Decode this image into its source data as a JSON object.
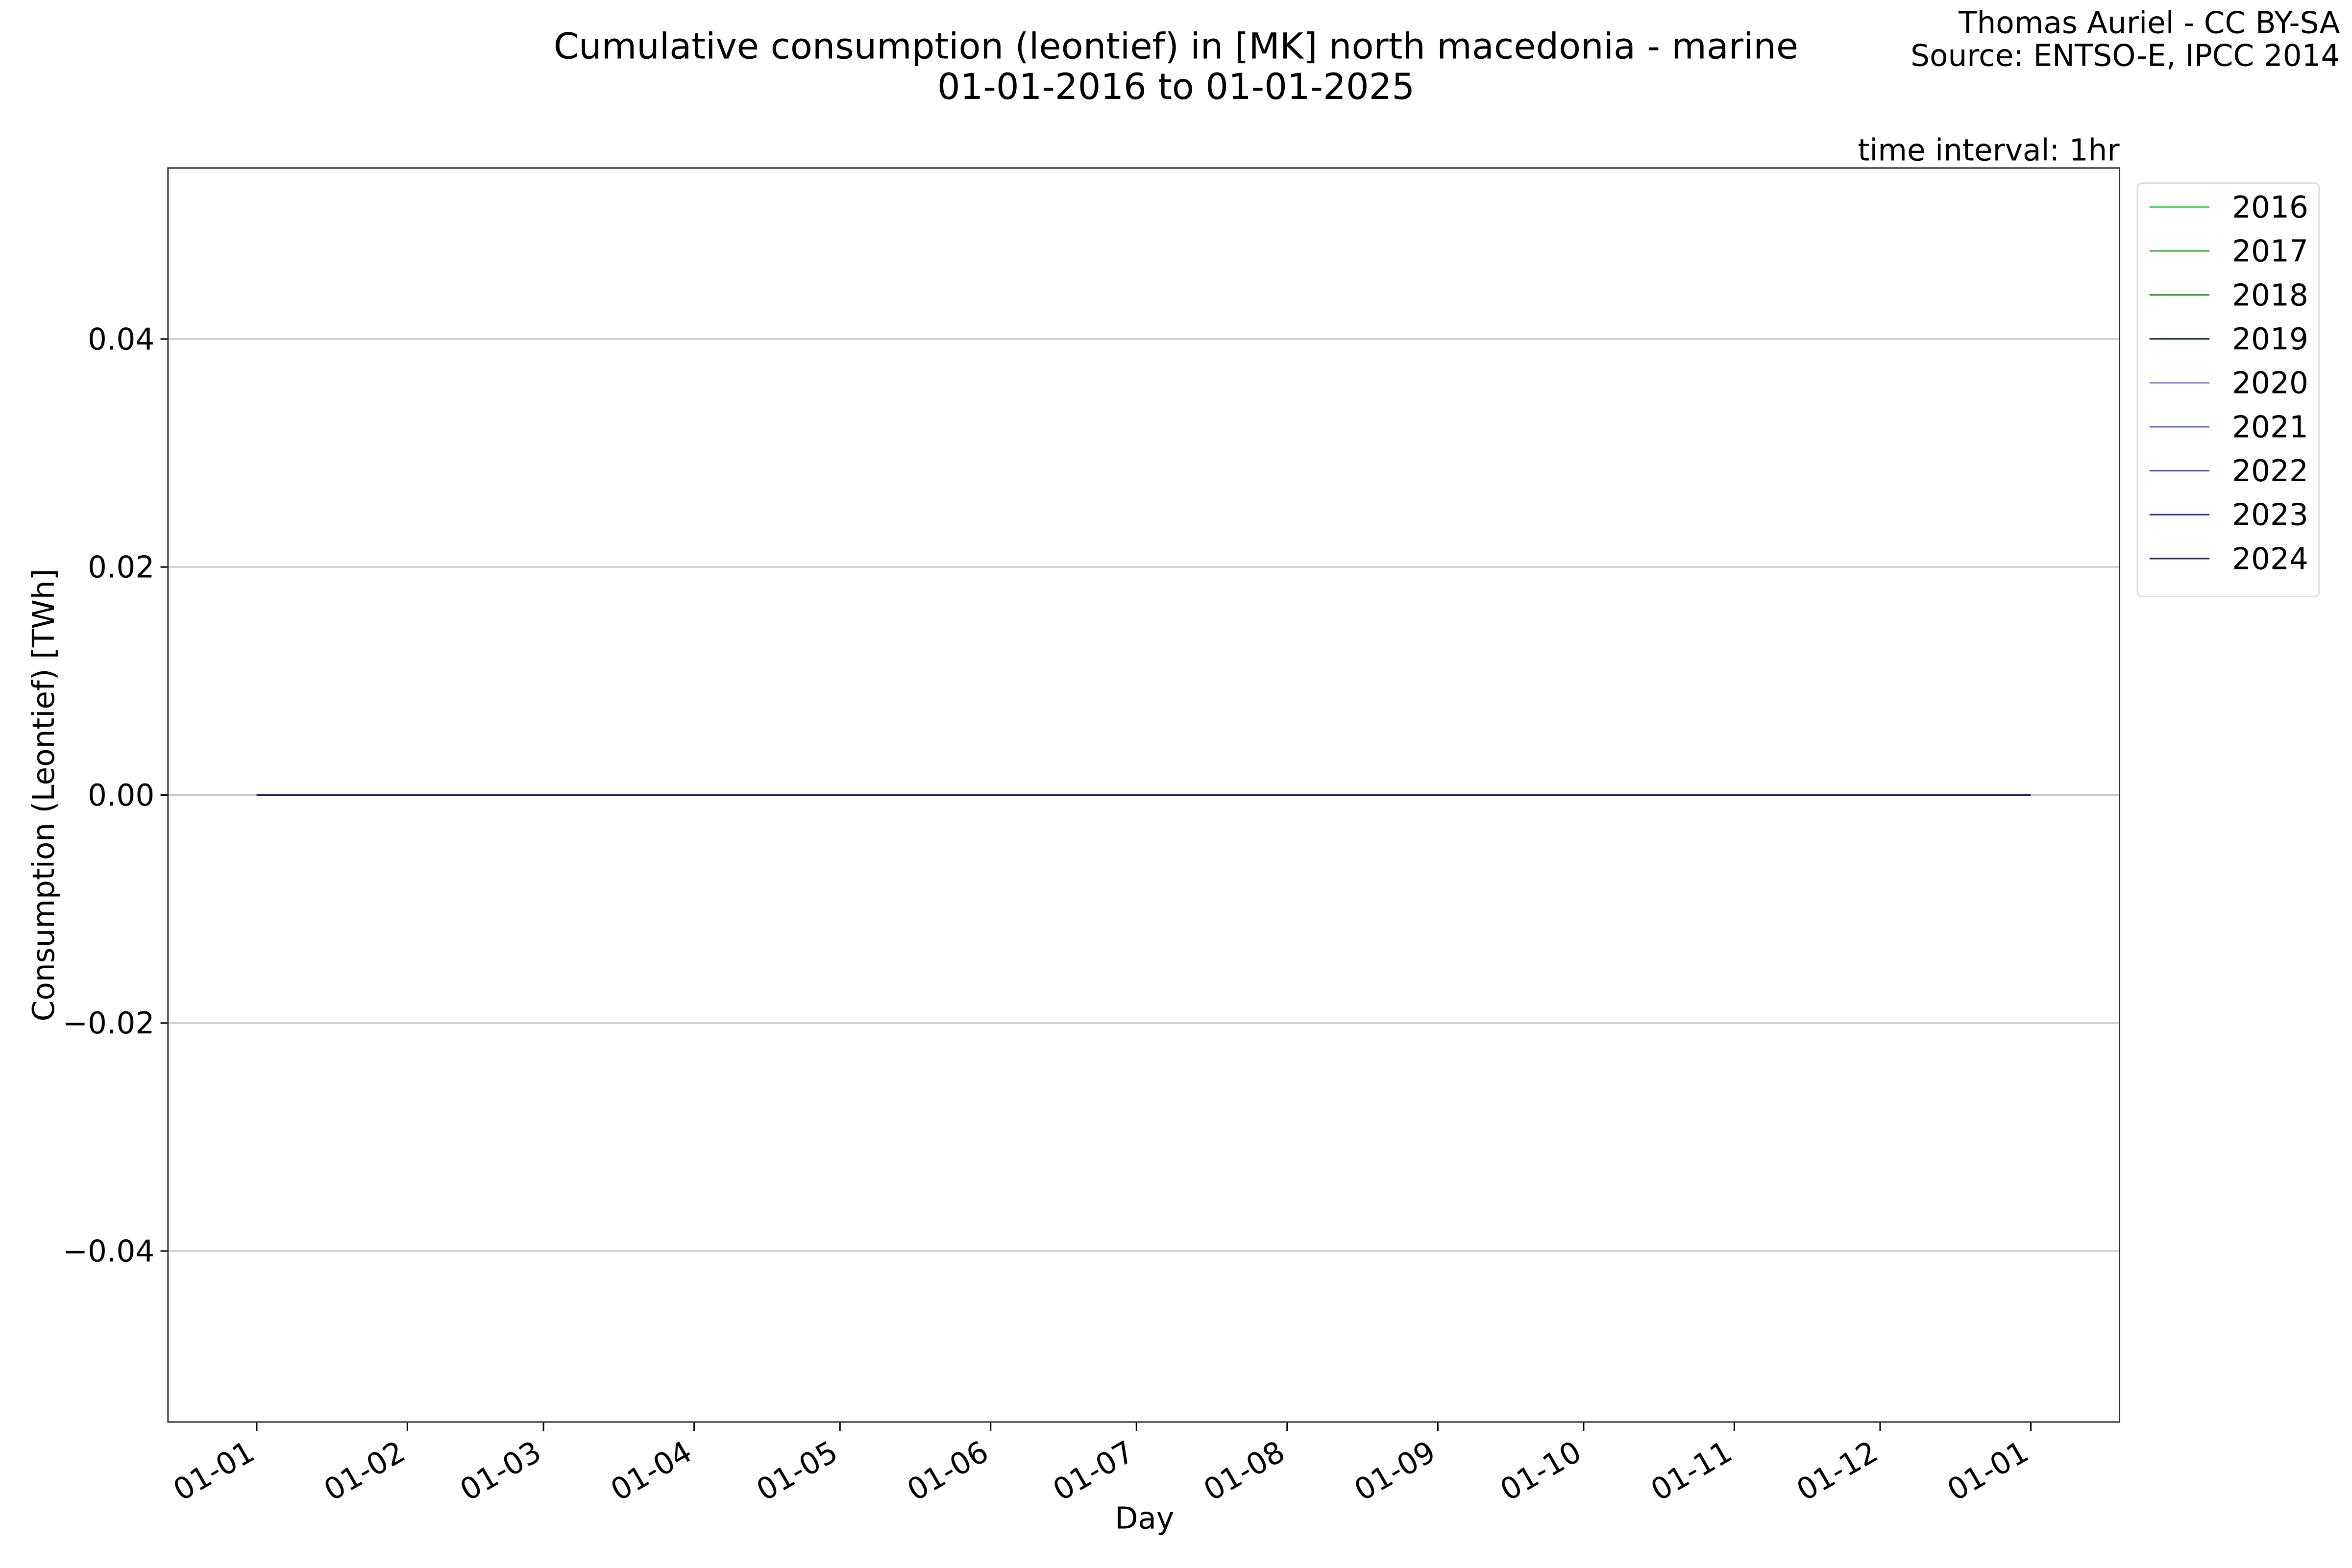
{
  "chart_data": {
    "type": "line",
    "title": "Cumulative consumption (leontief) in [MK] north macedonia - marine",
    "subtitle": "01-01-2016 to 01-01-2025",
    "credit": "Thomas Auriel - CC BY-SA",
    "source": "Source: ENTSO-E, IPCC 2014",
    "annotation": "time interval: 1hr",
    "x_label": "Day",
    "y_label": "Consumption (Leontief) [TWh]",
    "x": [
      0,
      365
    ],
    "series": [
      {
        "name": "2016",
        "color": "#5fd35f",
        "values": [
          0,
          0
        ]
      },
      {
        "name": "2017",
        "color": "#3fb03f",
        "values": [
          0,
          0
        ]
      },
      {
        "name": "2018",
        "color": "#238b23",
        "values": [
          0,
          0
        ]
      },
      {
        "name": "2019",
        "color": "#1a3d1a",
        "values": [
          0,
          0
        ]
      },
      {
        "name": "2020",
        "color": "#8c8cc8",
        "values": [
          0,
          0
        ]
      },
      {
        "name": "2021",
        "color": "#5a6cf0",
        "values": [
          0,
          0
        ]
      },
      {
        "name": "2022",
        "color": "#3848c0",
        "values": [
          0,
          0
        ]
      },
      {
        "name": "2023",
        "color": "#2030a8",
        "values": [
          0,
          0
        ]
      },
      {
        "name": "2024",
        "color": "#24245e",
        "values": [
          0,
          0
        ]
      }
    ],
    "xlim": [
      -18.25,
      383.25
    ],
    "xticks": [
      {
        "value": 0,
        "label": "01-01"
      },
      {
        "value": 31,
        "label": "01-02"
      },
      {
        "value": 59,
        "label": "01-03"
      },
      {
        "value": 90,
        "label": "01-04"
      },
      {
        "value": 120,
        "label": "01-05"
      },
      {
        "value": 151,
        "label": "01-06"
      },
      {
        "value": 181,
        "label": "01-07"
      },
      {
        "value": 212,
        "label": "01-08"
      },
      {
        "value": 243,
        "label": "01-09"
      },
      {
        "value": 273,
        "label": "01-10"
      },
      {
        "value": 304,
        "label": "01-11"
      },
      {
        "value": 334,
        "label": "01-12"
      },
      {
        "value": 365,
        "label": "01-01"
      }
    ],
    "ylim": [
      -0.055,
      0.055
    ],
    "yticks": [
      {
        "value": -0.04,
        "label": "−0.04"
      },
      {
        "value": -0.02,
        "label": "−0.02"
      },
      {
        "value": 0,
        "label": "0.00"
      },
      {
        "value": 0.02,
        "label": "0.02"
      },
      {
        "value": 0.04,
        "label": "0.04"
      }
    ],
    "grid": true,
    "legend": "outside-upper-right"
  }
}
